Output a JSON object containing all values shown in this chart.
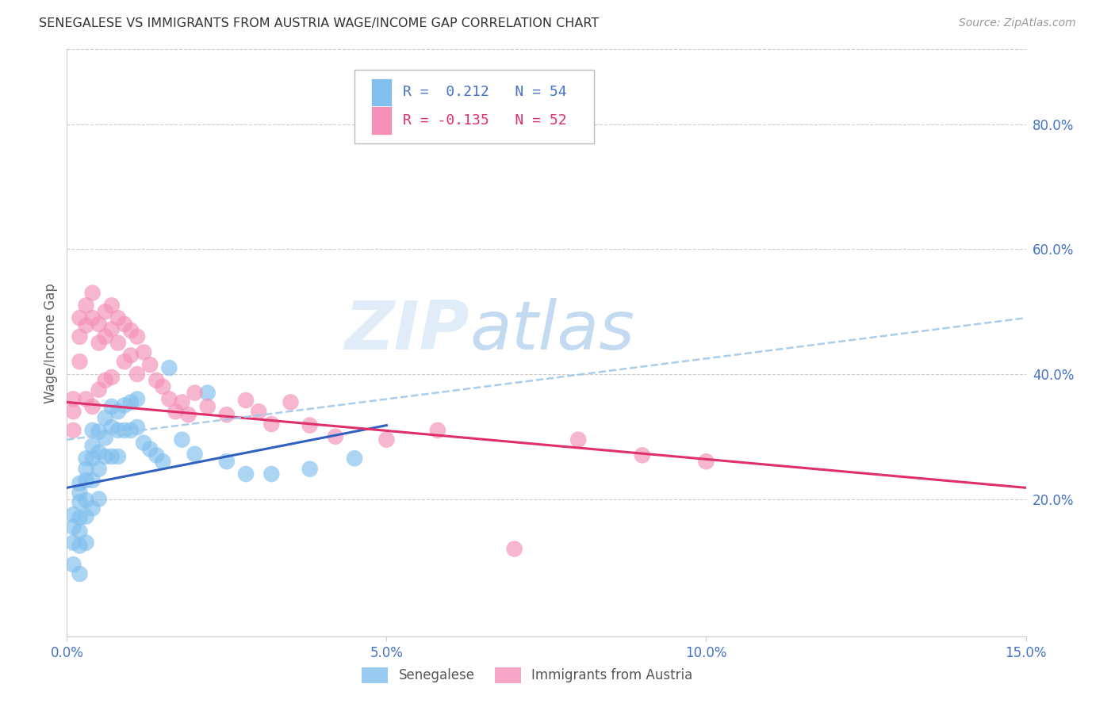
{
  "title": "SENEGALESE VS IMMIGRANTS FROM AUSTRIA WAGE/INCOME GAP CORRELATION CHART",
  "source": "Source: ZipAtlas.com",
  "ylabel": "Wage/Income Gap",
  "xlim": [
    0.0,
    0.15
  ],
  "ylim": [
    -0.02,
    0.92
  ],
  "xticks": [
    0.0,
    0.05,
    0.1,
    0.15
  ],
  "xticklabels": [
    "0.0%",
    "5.0%",
    "10.0%",
    "15.0%"
  ],
  "yticks_right": [
    0.2,
    0.4,
    0.6,
    0.8
  ],
  "yticklabels_right": [
    "20.0%",
    "40.0%",
    "60.0%",
    "80.0%"
  ],
  "blue_R": 0.212,
  "blue_N": 54,
  "pink_R": -0.135,
  "pink_N": 52,
  "blue_color": "#80BFEE",
  "pink_color": "#F490B8",
  "trend_blue": "#3060C0",
  "trend_pink": "#E0306A",
  "trend_dashed_color": "#A0C8E8",
  "legend1": "Senegalese",
  "legend2": "Immigrants from Austria",
  "watermark": "ZIPatlas",
  "blue_line_x0": 0.0,
  "blue_line_y0": 0.218,
  "blue_line_x1": 0.05,
  "blue_line_y1": 0.318,
  "pink_line_x0": 0.0,
  "pink_line_y0": 0.355,
  "pink_line_x1": 0.15,
  "pink_line_y1": 0.218,
  "dashed_line_x0": 0.0,
  "dashed_line_y0": 0.295,
  "dashed_line_x1": 0.15,
  "dashed_line_y1": 0.49,
  "blue_scatter_x": [
    0.001,
    0.001,
    0.001,
    0.001,
    0.002,
    0.002,
    0.002,
    0.002,
    0.002,
    0.002,
    0.002,
    0.003,
    0.003,
    0.003,
    0.003,
    0.003,
    0.003,
    0.004,
    0.004,
    0.004,
    0.004,
    0.004,
    0.005,
    0.005,
    0.005,
    0.005,
    0.006,
    0.006,
    0.006,
    0.007,
    0.007,
    0.007,
    0.008,
    0.008,
    0.008,
    0.009,
    0.009,
    0.01,
    0.01,
    0.011,
    0.011,
    0.012,
    0.013,
    0.014,
    0.015,
    0.016,
    0.018,
    0.02,
    0.022,
    0.025,
    0.028,
    0.032,
    0.038,
    0.045
  ],
  "blue_scatter_y": [
    0.175,
    0.155,
    0.13,
    0.095,
    0.225,
    0.21,
    0.195,
    0.17,
    0.148,
    0.125,
    0.08,
    0.265,
    0.248,
    0.23,
    0.198,
    0.172,
    0.13,
    0.31,
    0.285,
    0.265,
    0.23,
    0.185,
    0.308,
    0.275,
    0.248,
    0.2,
    0.33,
    0.298,
    0.268,
    0.348,
    0.315,
    0.268,
    0.34,
    0.31,
    0.268,
    0.35,
    0.31,
    0.355,
    0.31,
    0.36,
    0.315,
    0.29,
    0.28,
    0.27,
    0.26,
    0.41,
    0.295,
    0.272,
    0.37,
    0.26,
    0.24,
    0.24,
    0.248,
    0.265
  ],
  "pink_scatter_x": [
    0.001,
    0.001,
    0.001,
    0.002,
    0.002,
    0.002,
    0.003,
    0.003,
    0.003,
    0.004,
    0.004,
    0.004,
    0.005,
    0.005,
    0.005,
    0.006,
    0.006,
    0.006,
    0.007,
    0.007,
    0.007,
    0.008,
    0.008,
    0.009,
    0.009,
    0.01,
    0.01,
    0.011,
    0.011,
    0.012,
    0.013,
    0.014,
    0.015,
    0.016,
    0.017,
    0.018,
    0.019,
    0.02,
    0.022,
    0.025,
    0.028,
    0.03,
    0.032,
    0.035,
    0.038,
    0.042,
    0.05,
    0.058,
    0.07,
    0.08,
    0.09,
    0.1
  ],
  "pink_scatter_y": [
    0.36,
    0.34,
    0.31,
    0.49,
    0.46,
    0.42,
    0.51,
    0.478,
    0.36,
    0.53,
    0.49,
    0.348,
    0.48,
    0.45,
    0.375,
    0.5,
    0.46,
    0.39,
    0.51,
    0.472,
    0.395,
    0.49,
    0.45,
    0.48,
    0.42,
    0.47,
    0.43,
    0.46,
    0.4,
    0.435,
    0.415,
    0.39,
    0.38,
    0.36,
    0.34,
    0.355,
    0.335,
    0.37,
    0.348,
    0.335,
    0.358,
    0.34,
    0.32,
    0.355,
    0.318,
    0.3,
    0.295,
    0.31,
    0.12,
    0.295,
    0.27,
    0.26
  ]
}
